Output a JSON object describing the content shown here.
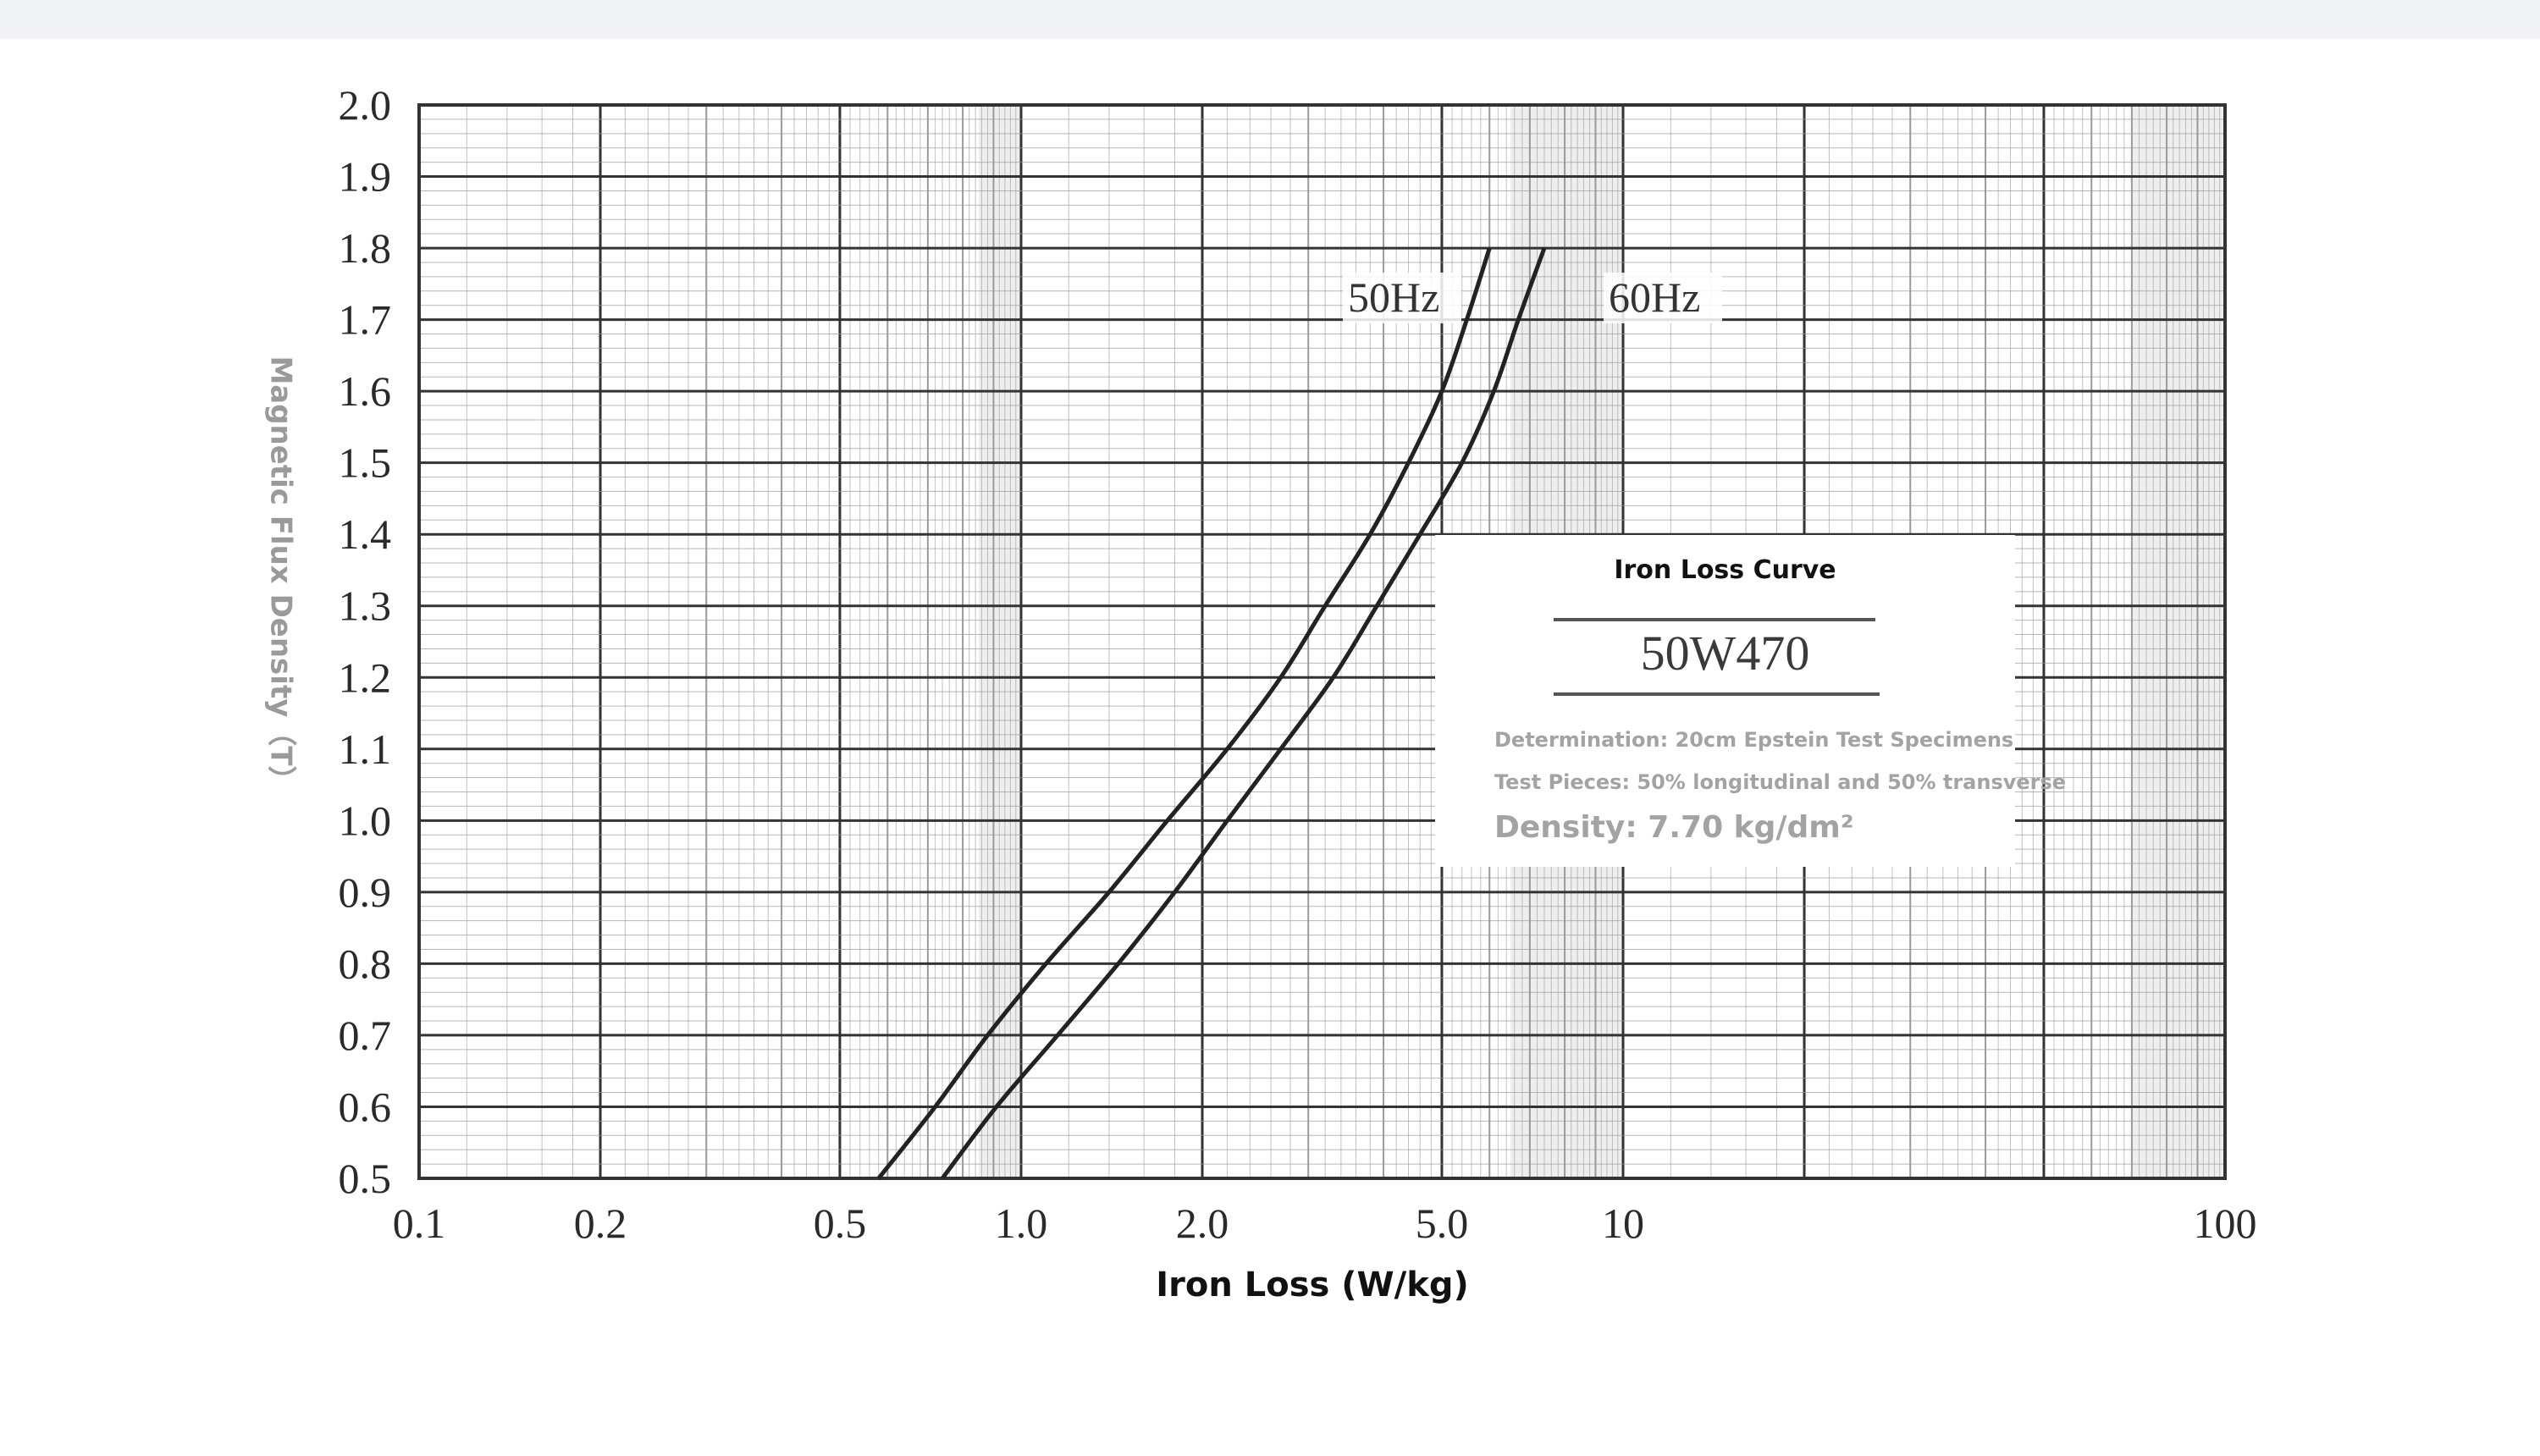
{
  "chart_data": {
    "type": "line",
    "title": "Iron Loss Curve",
    "xlabel": "Iron Loss (W/kg)",
    "ylabel": "Magnetic Flux Density（T）",
    "x_scale": "log",
    "xlim": [
      0.1,
      100
    ],
    "ylim": [
      0.5,
      2.0
    ],
    "x_ticks": [
      {
        "value": 0.1,
        "label": "0.1"
      },
      {
        "value": 0.2,
        "label": "0.2"
      },
      {
        "value": 0.5,
        "label": "0.5"
      },
      {
        "value": 1,
        "label": "1.0"
      },
      {
        "value": 2,
        "label": "2.0"
      },
      {
        "value": 5,
        "label": "5.0"
      },
      {
        "value": 10,
        "label": "10"
      },
      {
        "value": 100,
        "label": "100"
      }
    ],
    "y_ticks": [
      {
        "value": 0.5,
        "label": "0.5"
      },
      {
        "value": 0.6,
        "label": "0.6"
      },
      {
        "value": 0.7,
        "label": "0.7"
      },
      {
        "value": 0.8,
        "label": "0.8"
      },
      {
        "value": 0.9,
        "label": "0.9"
      },
      {
        "value": 1.0,
        "label": "1.0"
      },
      {
        "value": 1.1,
        "label": "1.1"
      },
      {
        "value": 1.2,
        "label": "1.2"
      },
      {
        "value": 1.3,
        "label": "1.3"
      },
      {
        "value": 1.4,
        "label": "1.4"
      },
      {
        "value": 1.5,
        "label": "1.5"
      },
      {
        "value": 1.6,
        "label": "1.6"
      },
      {
        "value": 1.7,
        "label": "1.7"
      },
      {
        "value": 1.8,
        "label": "1.8"
      },
      {
        "value": 1.9,
        "label": "1.9"
      },
      {
        "value": 2.0,
        "label": "2.0"
      }
    ],
    "grid": true,
    "series": [
      {
        "name": "50Hz",
        "points": [
          [
            0.58,
            0.5
          ],
          [
            0.72,
            0.6
          ],
          [
            0.88,
            0.7
          ],
          [
            1.1,
            0.8
          ],
          [
            1.4,
            0.9
          ],
          [
            1.75,
            1.0
          ],
          [
            2.2,
            1.1
          ],
          [
            2.7,
            1.2
          ],
          [
            3.2,
            1.3
          ],
          [
            3.8,
            1.4
          ],
          [
            4.4,
            1.5
          ],
          [
            5.0,
            1.6
          ],
          [
            5.5,
            1.7
          ],
          [
            6.0,
            1.8
          ]
        ]
      },
      {
        "name": "60Hz",
        "points": [
          [
            0.74,
            0.5
          ],
          [
            0.91,
            0.6
          ],
          [
            1.15,
            0.7
          ],
          [
            1.45,
            0.8
          ],
          [
            1.8,
            0.9
          ],
          [
            2.2,
            1.0
          ],
          [
            2.7,
            1.1
          ],
          [
            3.3,
            1.2
          ],
          [
            3.9,
            1.3
          ],
          [
            4.6,
            1.4
          ],
          [
            5.4,
            1.5
          ],
          [
            6.1,
            1.6
          ],
          [
            6.7,
            1.7
          ],
          [
            7.4,
            1.8
          ]
        ]
      }
    ],
    "annotation_box": {
      "title": "Iron Loss Curve",
      "grade": "50W470",
      "determination": "Determination: 20cm Epstein Test Specimens",
      "test_pieces": "Test Pieces: 50% longitudinal and 50% transverse",
      "density": "Density: 7.70 kg/dm²"
    },
    "colors": {
      "curve": "#222222",
      "grid_major": "#333333",
      "grid_minor": "#9a9a9a",
      "shade": "#cfcfcf"
    }
  }
}
